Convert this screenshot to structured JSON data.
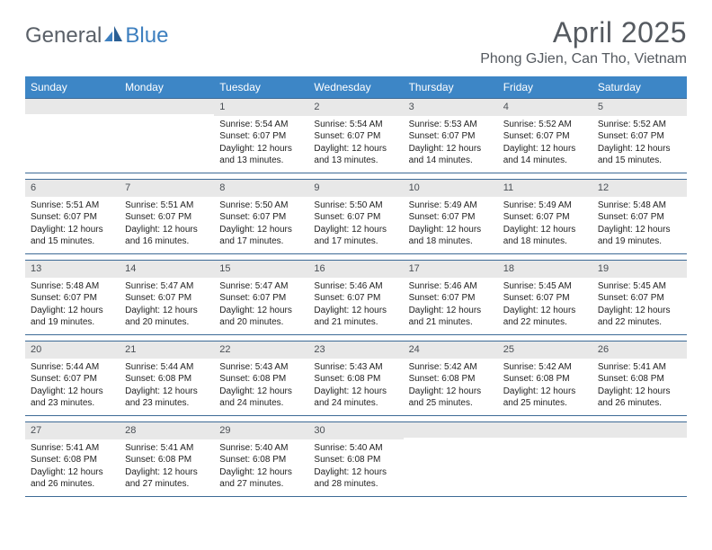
{
  "colors": {
    "header_bar": "#3d86c6",
    "week_border": "#3d6a96",
    "daynum_bg": "#e8e8e8",
    "text_main": "#333333",
    "title_text": "#555a60",
    "logo_gray": "#5a6068",
    "logo_blue": "#3d7fbf",
    "background": "#ffffff"
  },
  "typography": {
    "month_title_pt": 32,
    "location_pt": 16,
    "weekday_pt": 12,
    "daynum_pt": 11,
    "detail_pt": 10
  },
  "logo": {
    "part1": "General",
    "part2": "Blue"
  },
  "title": "April 2025",
  "location": "Phong GJien, Can Tho, Vietnam",
  "weekdays": [
    "Sunday",
    "Monday",
    "Tuesday",
    "Wednesday",
    "Thursday",
    "Friday",
    "Saturday"
  ],
  "weeks": [
    [
      {
        "day": "",
        "sunrise": "",
        "sunset": "",
        "daylight": ""
      },
      {
        "day": "",
        "sunrise": "",
        "sunset": "",
        "daylight": ""
      },
      {
        "day": "1",
        "sunrise": "Sunrise: 5:54 AM",
        "sunset": "Sunset: 6:07 PM",
        "daylight": "Daylight: 12 hours and 13 minutes."
      },
      {
        "day": "2",
        "sunrise": "Sunrise: 5:54 AM",
        "sunset": "Sunset: 6:07 PM",
        "daylight": "Daylight: 12 hours and 13 minutes."
      },
      {
        "day": "3",
        "sunrise": "Sunrise: 5:53 AM",
        "sunset": "Sunset: 6:07 PM",
        "daylight": "Daylight: 12 hours and 14 minutes."
      },
      {
        "day": "4",
        "sunrise": "Sunrise: 5:52 AM",
        "sunset": "Sunset: 6:07 PM",
        "daylight": "Daylight: 12 hours and 14 minutes."
      },
      {
        "day": "5",
        "sunrise": "Sunrise: 5:52 AM",
        "sunset": "Sunset: 6:07 PM",
        "daylight": "Daylight: 12 hours and 15 minutes."
      }
    ],
    [
      {
        "day": "6",
        "sunrise": "Sunrise: 5:51 AM",
        "sunset": "Sunset: 6:07 PM",
        "daylight": "Daylight: 12 hours and 15 minutes."
      },
      {
        "day": "7",
        "sunrise": "Sunrise: 5:51 AM",
        "sunset": "Sunset: 6:07 PM",
        "daylight": "Daylight: 12 hours and 16 minutes."
      },
      {
        "day": "8",
        "sunrise": "Sunrise: 5:50 AM",
        "sunset": "Sunset: 6:07 PM",
        "daylight": "Daylight: 12 hours and 17 minutes."
      },
      {
        "day": "9",
        "sunrise": "Sunrise: 5:50 AM",
        "sunset": "Sunset: 6:07 PM",
        "daylight": "Daylight: 12 hours and 17 minutes."
      },
      {
        "day": "10",
        "sunrise": "Sunrise: 5:49 AM",
        "sunset": "Sunset: 6:07 PM",
        "daylight": "Daylight: 12 hours and 18 minutes."
      },
      {
        "day": "11",
        "sunrise": "Sunrise: 5:49 AM",
        "sunset": "Sunset: 6:07 PM",
        "daylight": "Daylight: 12 hours and 18 minutes."
      },
      {
        "day": "12",
        "sunrise": "Sunrise: 5:48 AM",
        "sunset": "Sunset: 6:07 PM",
        "daylight": "Daylight: 12 hours and 19 minutes."
      }
    ],
    [
      {
        "day": "13",
        "sunrise": "Sunrise: 5:48 AM",
        "sunset": "Sunset: 6:07 PM",
        "daylight": "Daylight: 12 hours and 19 minutes."
      },
      {
        "day": "14",
        "sunrise": "Sunrise: 5:47 AM",
        "sunset": "Sunset: 6:07 PM",
        "daylight": "Daylight: 12 hours and 20 minutes."
      },
      {
        "day": "15",
        "sunrise": "Sunrise: 5:47 AM",
        "sunset": "Sunset: 6:07 PM",
        "daylight": "Daylight: 12 hours and 20 minutes."
      },
      {
        "day": "16",
        "sunrise": "Sunrise: 5:46 AM",
        "sunset": "Sunset: 6:07 PM",
        "daylight": "Daylight: 12 hours and 21 minutes."
      },
      {
        "day": "17",
        "sunrise": "Sunrise: 5:46 AM",
        "sunset": "Sunset: 6:07 PM",
        "daylight": "Daylight: 12 hours and 21 minutes."
      },
      {
        "day": "18",
        "sunrise": "Sunrise: 5:45 AM",
        "sunset": "Sunset: 6:07 PM",
        "daylight": "Daylight: 12 hours and 22 minutes."
      },
      {
        "day": "19",
        "sunrise": "Sunrise: 5:45 AM",
        "sunset": "Sunset: 6:07 PM",
        "daylight": "Daylight: 12 hours and 22 minutes."
      }
    ],
    [
      {
        "day": "20",
        "sunrise": "Sunrise: 5:44 AM",
        "sunset": "Sunset: 6:07 PM",
        "daylight": "Daylight: 12 hours and 23 minutes."
      },
      {
        "day": "21",
        "sunrise": "Sunrise: 5:44 AM",
        "sunset": "Sunset: 6:08 PM",
        "daylight": "Daylight: 12 hours and 23 minutes."
      },
      {
        "day": "22",
        "sunrise": "Sunrise: 5:43 AM",
        "sunset": "Sunset: 6:08 PM",
        "daylight": "Daylight: 12 hours and 24 minutes."
      },
      {
        "day": "23",
        "sunrise": "Sunrise: 5:43 AM",
        "sunset": "Sunset: 6:08 PM",
        "daylight": "Daylight: 12 hours and 24 minutes."
      },
      {
        "day": "24",
        "sunrise": "Sunrise: 5:42 AM",
        "sunset": "Sunset: 6:08 PM",
        "daylight": "Daylight: 12 hours and 25 minutes."
      },
      {
        "day": "25",
        "sunrise": "Sunrise: 5:42 AM",
        "sunset": "Sunset: 6:08 PM",
        "daylight": "Daylight: 12 hours and 25 minutes."
      },
      {
        "day": "26",
        "sunrise": "Sunrise: 5:41 AM",
        "sunset": "Sunset: 6:08 PM",
        "daylight": "Daylight: 12 hours and 26 minutes."
      }
    ],
    [
      {
        "day": "27",
        "sunrise": "Sunrise: 5:41 AM",
        "sunset": "Sunset: 6:08 PM",
        "daylight": "Daylight: 12 hours and 26 minutes."
      },
      {
        "day": "28",
        "sunrise": "Sunrise: 5:41 AM",
        "sunset": "Sunset: 6:08 PM",
        "daylight": "Daylight: 12 hours and 27 minutes."
      },
      {
        "day": "29",
        "sunrise": "Sunrise: 5:40 AM",
        "sunset": "Sunset: 6:08 PM",
        "daylight": "Daylight: 12 hours and 27 minutes."
      },
      {
        "day": "30",
        "sunrise": "Sunrise: 5:40 AM",
        "sunset": "Sunset: 6:08 PM",
        "daylight": "Daylight: 12 hours and 28 minutes."
      },
      {
        "day": "",
        "sunrise": "",
        "sunset": "",
        "daylight": ""
      },
      {
        "day": "",
        "sunrise": "",
        "sunset": "",
        "daylight": ""
      },
      {
        "day": "",
        "sunrise": "",
        "sunset": "",
        "daylight": ""
      }
    ]
  ]
}
